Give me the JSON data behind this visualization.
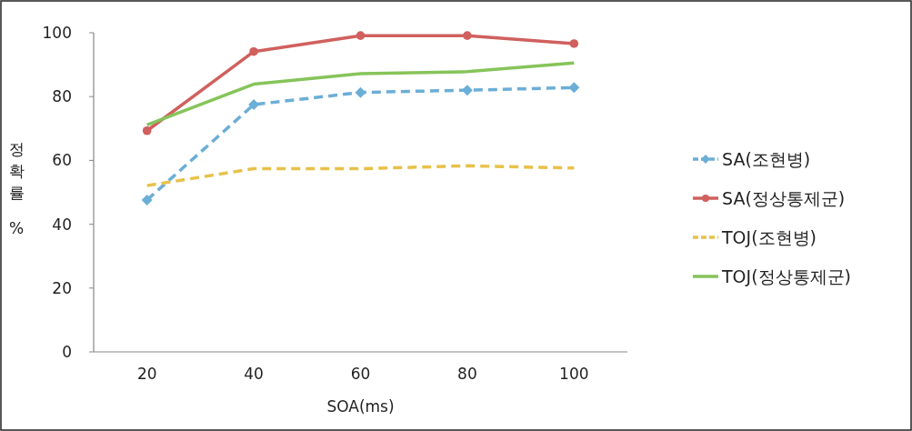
{
  "chart_data": {
    "type": "line",
    "xlabel": "SOA(ms)",
    "ylabel": "정확률 %",
    "categories": [
      "20",
      "40",
      "60",
      "80",
      "100"
    ],
    "series": [
      {
        "name": "SA(조현병)",
        "color": "#6baed6",
        "values": [
          47.6,
          77.5,
          81.3,
          82.0,
          82.8
        ],
        "marker": "diamond",
        "line_style": "dashed"
      },
      {
        "name": "SA(정상통제군)",
        "color": "#d0605e",
        "values": [
          69.3,
          94.1,
          99.1,
          99.1,
          96.6
        ],
        "marker": "circle",
        "line_style": "solid"
      },
      {
        "name": "TOJ(조현병)",
        "color": "#e8c14a",
        "values": [
          52.1,
          57.4,
          57.4,
          58.3,
          57.6
        ],
        "marker": "none",
        "line_style": "dashed"
      },
      {
        "name": "TOJ(정상통제군)",
        "color": "#86c45a",
        "values": [
          71.1,
          83.9,
          87.2,
          87.8,
          90.5
        ],
        "marker": "none",
        "line_style": "solid"
      }
    ],
    "ylim": [
      0,
      100
    ],
    "yticks": [
      0,
      20,
      40,
      60,
      80,
      100
    ],
    "grid": false,
    "legend": "right"
  }
}
